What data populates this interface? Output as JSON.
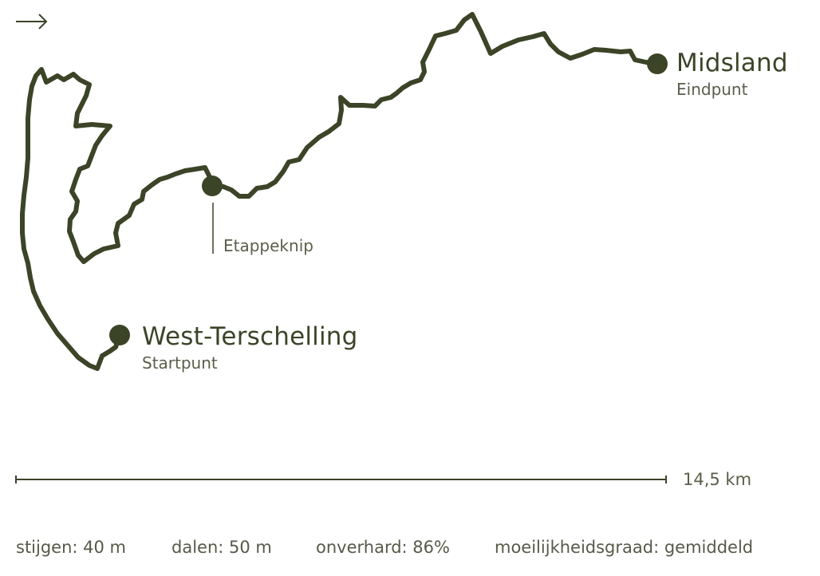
{
  "route": {
    "start": {
      "name": "West-Terschelling",
      "sub": "Startpunt"
    },
    "waypoint": {
      "name": "Etappeknip"
    },
    "end": {
      "name": "Midsland",
      "sub": "Eindpunt"
    }
  },
  "scale": {
    "label": "14,5 km"
  },
  "stats": {
    "ascent": "stijgen: 40 m",
    "descent": "dalen: 50 m",
    "unpaved": "onverhard: 86%",
    "difficulty": "moeilijkheidsgraad: gemiddeld"
  },
  "icons": {
    "arrow": "arrow-right-icon"
  },
  "colors": {
    "route": "#3b4427",
    "text": "#3b4427",
    "background": "#ffffff"
  }
}
